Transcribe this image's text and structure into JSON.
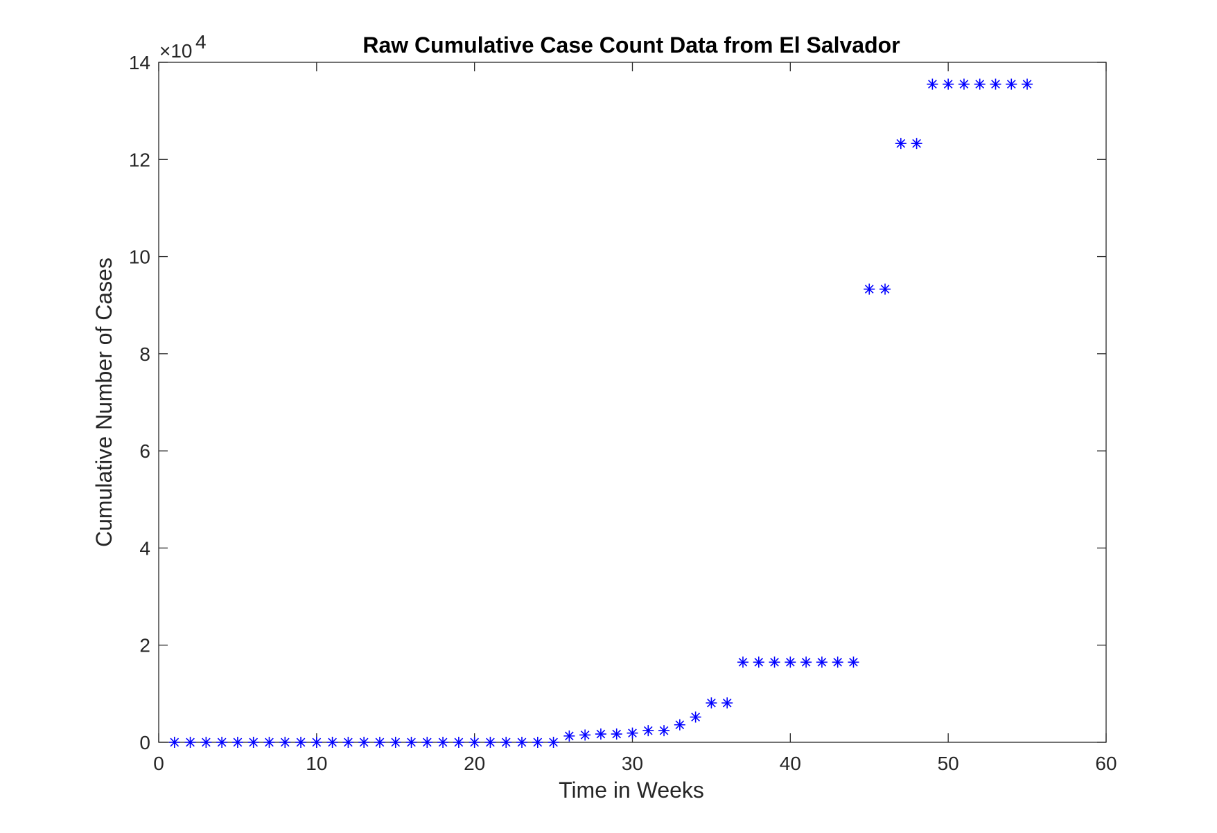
{
  "chart_data": {
    "type": "scatter",
    "title": "Raw Cumulative Case Count Data from El Salvador",
    "xlabel": "Time in Weeks",
    "ylabel": "Cumulative Number of Cases",
    "xlim": [
      0,
      60
    ],
    "ylim": [
      0,
      140000
    ],
    "x_ticks": [
      0,
      10,
      20,
      30,
      40,
      50,
      60
    ],
    "x_tick_labels": [
      "0",
      "10",
      "20",
      "30",
      "40",
      "50",
      "60"
    ],
    "y_ticks": [
      0,
      20000,
      40000,
      60000,
      80000,
      100000,
      120000,
      140000
    ],
    "y_tick_labels": [
      "0",
      "2",
      "4",
      "6",
      "8",
      "10",
      "12",
      "14"
    ],
    "y_exponent_label": "×10",
    "y_exponent_power": "4",
    "grid": false,
    "marker": "asterisk",
    "marker_color": "#0000ff",
    "axis_color": "#262626",
    "series": [
      {
        "x": [
          1,
          2,
          3,
          4,
          5,
          6,
          7,
          8,
          9,
          10,
          11,
          12,
          13,
          14,
          15,
          16,
          17,
          18,
          19,
          20,
          21,
          22,
          23,
          24,
          25,
          26,
          27,
          28,
          29,
          30,
          31,
          32,
          33,
          34,
          35,
          36,
          37,
          38,
          39,
          40,
          41,
          42,
          43,
          44,
          45,
          46,
          47,
          48,
          49,
          50,
          51,
          52,
          53,
          54,
          55
        ],
        "values": [
          0,
          0,
          0,
          0,
          0,
          0,
          0,
          0,
          0,
          0,
          0,
          0,
          0,
          0,
          0,
          0,
          0,
          0,
          0,
          0,
          0,
          0,
          0,
          0,
          0,
          1300,
          1500,
          1700,
          1700,
          1900,
          2400,
          2400,
          3600,
          5200,
          8100,
          8100,
          16500,
          16500,
          16500,
          16500,
          16500,
          16500,
          16500,
          16500,
          93300,
          93300,
          123300,
          123300,
          135500,
          135500,
          135500,
          135500,
          135500,
          135500,
          135500
        ]
      }
    ]
  }
}
